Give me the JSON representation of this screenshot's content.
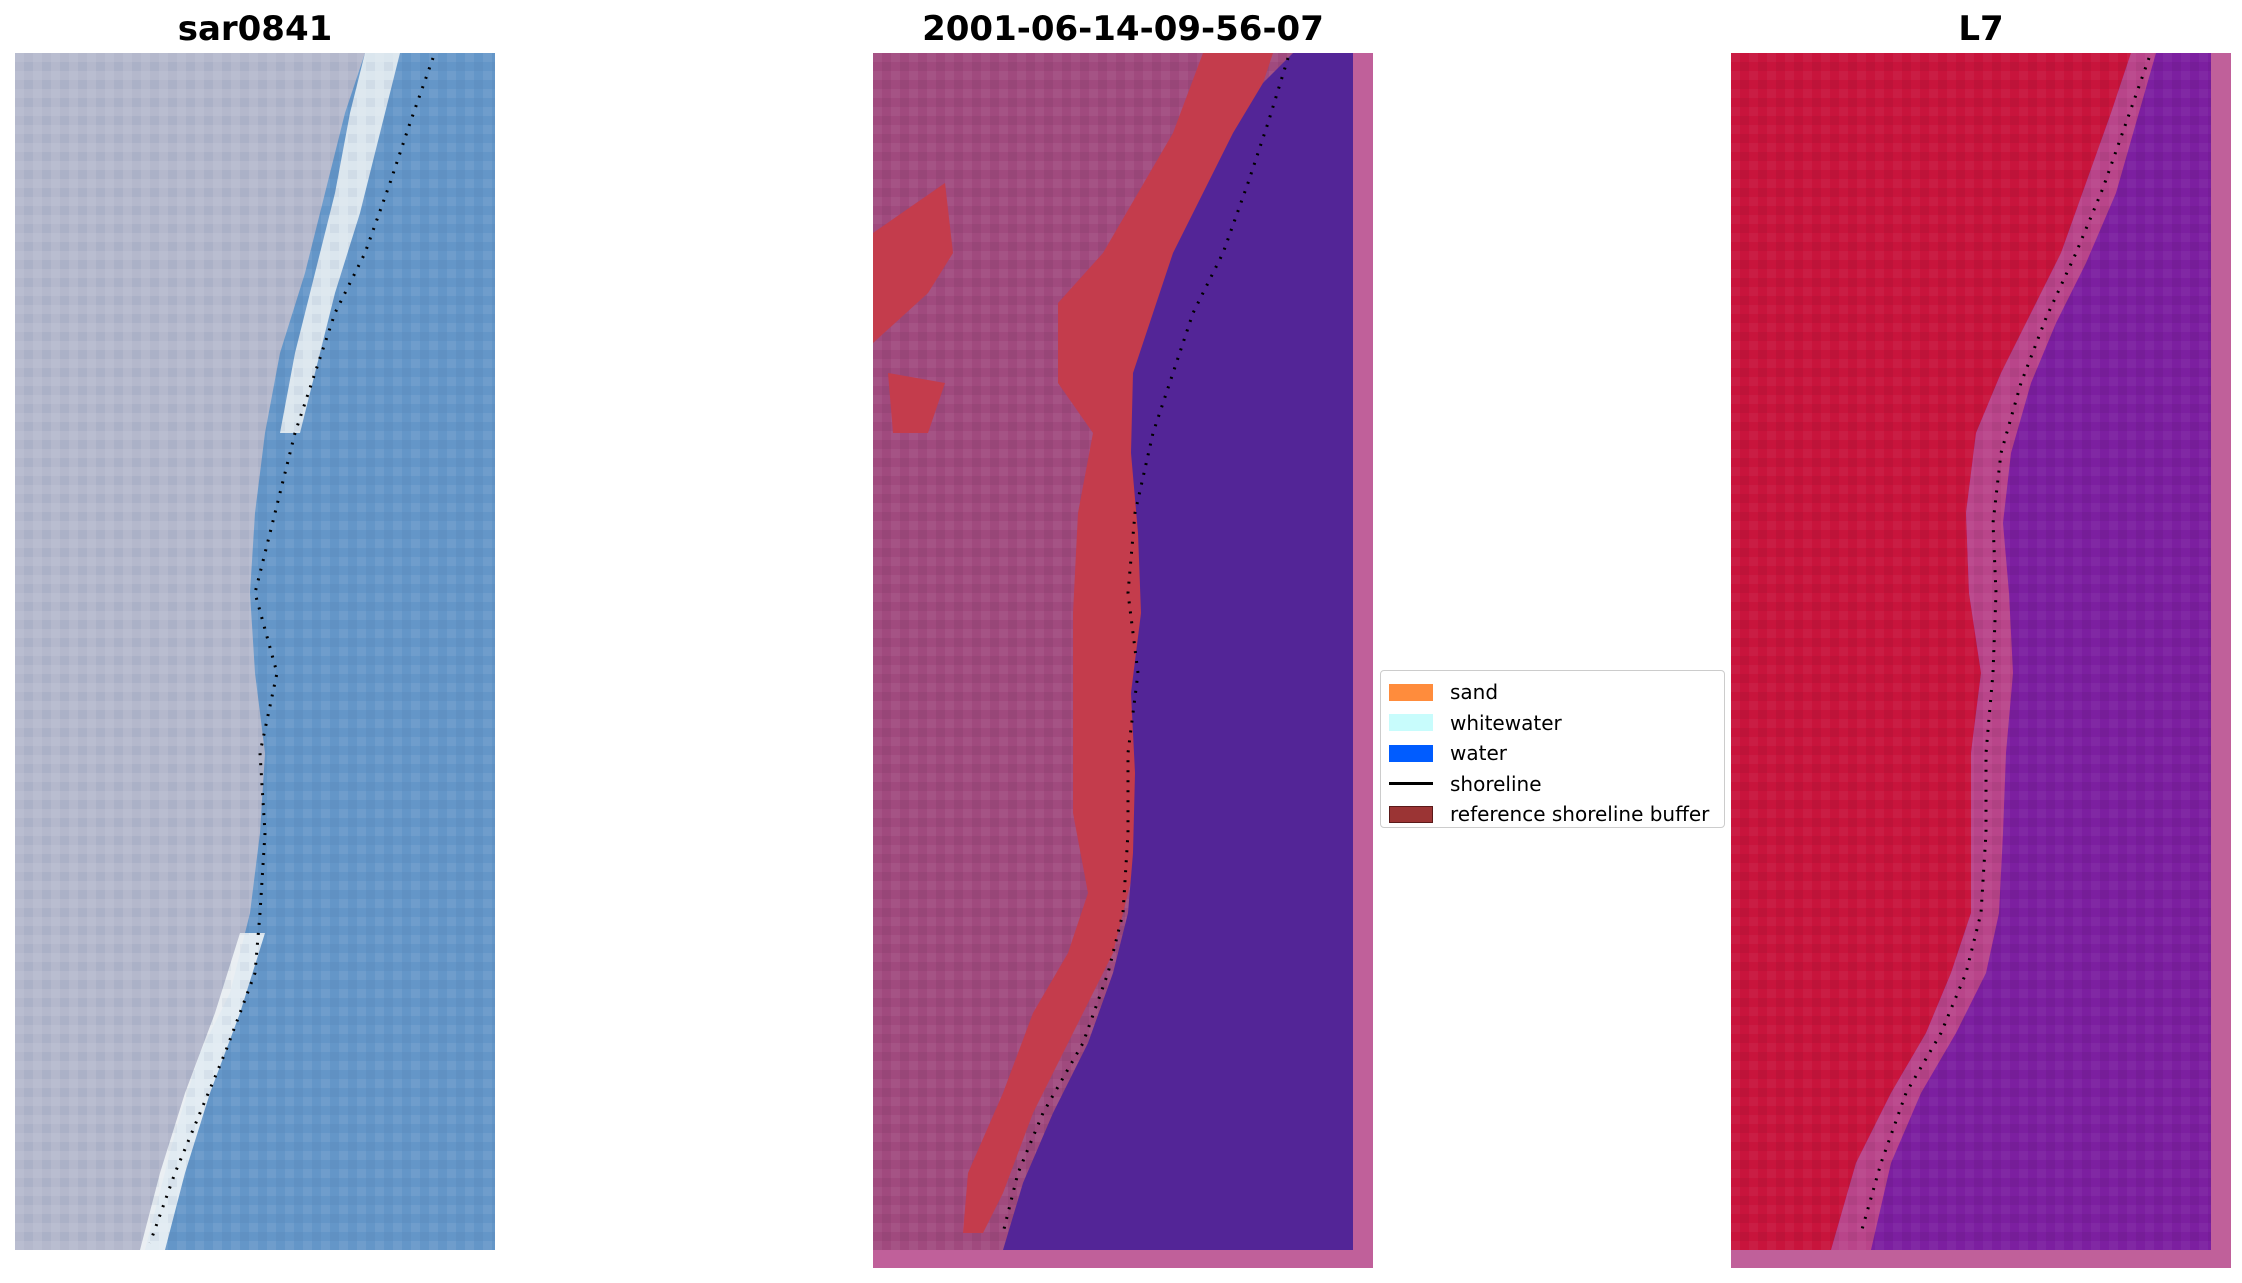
{
  "panels": [
    {
      "title": "sar0841"
    },
    {
      "title": "2001-06-14-09-56-07"
    },
    {
      "title": "L7"
    }
  ],
  "legend": {
    "items": [
      {
        "label": "sand",
        "color": "#ff8c3c",
        "kind": "patch"
      },
      {
        "label": "whitewater",
        "color": "#c8fcfc",
        "kind": "patch"
      },
      {
        "label": "water",
        "color": "#005cff",
        "kind": "patch"
      },
      {
        "label": "shoreline",
        "color": "#000000",
        "kind": "line"
      },
      {
        "label": "reference shoreline buffer",
        "color": "#9b3434",
        "kind": "patch"
      }
    ]
  },
  "colors": {
    "rgb_land": "#b4b8cc",
    "rgb_beach": "#f0f4f4",
    "rgb_water": "#6496c8",
    "classified_land": "#a04a7e",
    "classified_buffer": "#c43c4c",
    "classified_water": "#532597",
    "classified_border": "#c0609a",
    "ndwi_land": "#c8143c",
    "ndwi_water": "#7c1fa0"
  }
}
